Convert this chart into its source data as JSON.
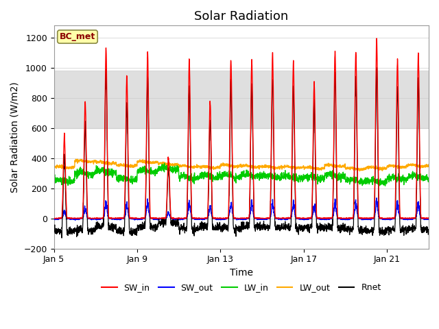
{
  "title": "Solar Radiation",
  "xlabel": "Time",
  "ylabel": "Solar Radiation (W/m2)",
  "ylim": [
    -200,
    1280
  ],
  "yticks": [
    -200,
    0,
    200,
    400,
    600,
    800,
    1000,
    1200
  ],
  "xstart_day": 5,
  "xend_day": 23,
  "xtick_days": [
    5,
    9,
    13,
    17,
    21
  ],
  "xtick_labels": [
    "Jan 5",
    "Jan 9",
    "Jan 13",
    "Jan 17",
    "Jan 21"
  ],
  "station_label": "BC_met",
  "shaded_ymin": 600,
  "shaded_ymax": 980,
  "line_colors": {
    "SW_in": "#ff0000",
    "SW_out": "#0000ff",
    "LW_in": "#00cc00",
    "LW_out": "#ffaa00",
    "Rnet": "#000000"
  },
  "background_color": "#ffffff",
  "grid_color": "#cccccc",
  "title_fontsize": 13,
  "axis_fontsize": 10,
  "tick_fontsize": 9,
  "n_days": 18,
  "samples_per_hour": 6,
  "day_peaks": [
    550,
    780,
    1130,
    940,
    1090,
    400,
    1050,
    780,
    1050,
    1050,
    1100,
    1040,
    900,
    1100,
    1110,
    1200,
    1050,
    1090
  ],
  "lw_in_base": [
    250,
    300,
    310,
    260,
    315,
    330,
    270,
    280,
    280,
    285,
    280,
    275,
    270,
    285,
    250,
    245,
    265,
    275
  ],
  "lw_out_base": [
    340,
    380,
    370,
    350,
    375,
    360,
    345,
    340,
    350,
    345,
    340,
    340,
    335,
    350,
    330,
    335,
    345,
    350
  ]
}
